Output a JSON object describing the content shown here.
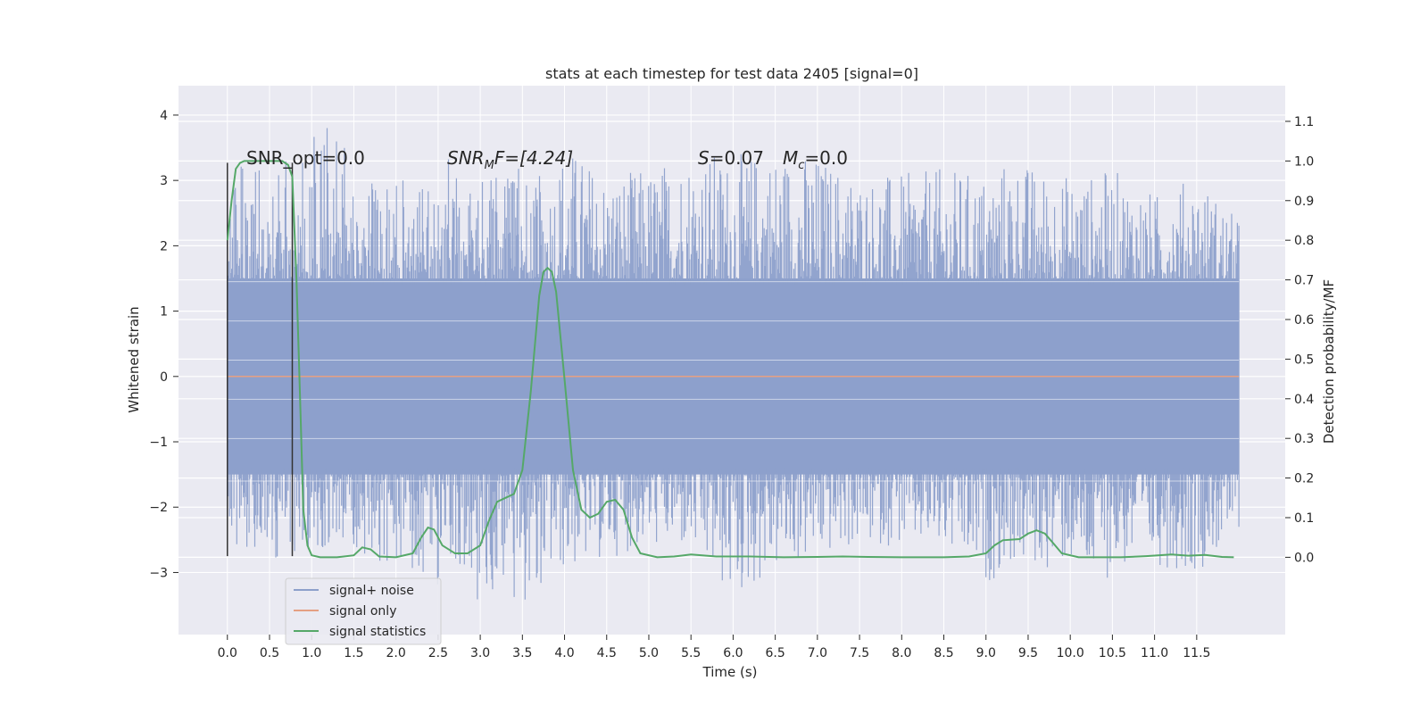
{
  "chart_data": {
    "type": "line",
    "title": "stats at each timestep for test data 2405 [signal=0]",
    "xlabel": "Time (s)",
    "ylabel": "Whitened strain",
    "y2label": "Detection probability/MF",
    "xlim": [
      -0.58,
      12.55
    ],
    "ylim": [
      -3.95,
      4.45
    ],
    "y2lim": [
      -0.195,
      1.19
    ],
    "xticks": [
      "0.0",
      "0.5",
      "1.0",
      "1.5",
      "2.0",
      "2.5",
      "3.0",
      "3.5",
      "4.0",
      "4.5",
      "5.0",
      "5.5",
      "6.0",
      "6.5",
      "7.0",
      "7.5",
      "8.0",
      "8.5",
      "9.0",
      "9.5",
      "10.0",
      "10.5",
      "11.0",
      "11.5"
    ],
    "yticks": [
      "4",
      "3",
      "2",
      "1",
      "0",
      "−1",
      "−2",
      "−3"
    ],
    "y2ticks": [
      "1.1",
      "1.0",
      "0.9",
      "0.8",
      "0.7",
      "0.6",
      "0.5",
      "0.4",
      "0.3",
      "0.2",
      "0.1",
      "0.0"
    ],
    "grid": true,
    "legend_position": "lower-left",
    "annotations": {
      "snr_opt": "SNR_opt=0.0",
      "snr_mf": "SNR",
      "snr_mf_sub": "M",
      "snr_mf_rest": "F=[4.24]",
      "s_label": "S",
      "s_value": "=0.07",
      "mc_label": "M",
      "mc_sub": "c",
      "mc_value": "=0.0"
    },
    "series": [
      {
        "name": "signal+ noise",
        "color": "#8da0cb",
        "kind": "noise",
        "x_range": [
          0.0,
          12.0
        ],
        "core_range": [
          -1.5,
          1.5
        ],
        "envelope": {
          "x": [
            0.0,
            0.1,
            0.5,
            1.0,
            1.05,
            1.5,
            2.0,
            2.5,
            2.6,
            3.0,
            3.2,
            3.5,
            3.8,
            4.0,
            4.5,
            5.0,
            5.5,
            6.0,
            6.5,
            7.0,
            7.5,
            8.0,
            8.5,
            9.0,
            9.3,
            9.6,
            10.0,
            10.3,
            10.5,
            11.0,
            11.5,
            12.0
          ],
          "upper": [
            3.1,
            3.3,
            3.2,
            3.5,
            4.1,
            3.3,
            3.0,
            3.2,
            3.4,
            3.0,
            3.1,
            3.3,
            3.0,
            3.6,
            3.1,
            3.2,
            3.5,
            3.4,
            3.5,
            3.4,
            3.1,
            3.1,
            3.2,
            3.1,
            3.4,
            3.2,
            3.1,
            3.1,
            3.2,
            2.8,
            3.1,
            2.4
          ],
          "lower": [
            -2.8,
            -2.6,
            -2.8,
            -2.7,
            -2.6,
            -2.7,
            -2.9,
            -3.2,
            -2.8,
            -3.5,
            -3.2,
            -3.6,
            -3.1,
            -3.0,
            -2.8,
            -2.6,
            -2.7,
            -3.5,
            -3.0,
            -2.8,
            -2.6,
            -2.6,
            -2.7,
            -3.2,
            -2.9,
            -3.0,
            -2.9,
            -3.3,
            -3.0,
            -2.9,
            -3.0,
            -2.4
          ]
        }
      },
      {
        "name": "signal only",
        "color": "#e5a083",
        "kind": "line",
        "x": [
          0.0,
          12.0
        ],
        "y": [
          0.0,
          0.0
        ]
      },
      {
        "name": "signal statistics",
        "color": "#55a868",
        "kind": "line2",
        "x": [
          0.0,
          0.05,
          0.1,
          0.15,
          0.2,
          0.3,
          0.5,
          0.65,
          0.72,
          0.77,
          0.82,
          0.87,
          0.9,
          0.95,
          1.0,
          1.1,
          1.3,
          1.5,
          1.6,
          1.7,
          1.8,
          2.0,
          2.2,
          2.3,
          2.38,
          2.45,
          2.55,
          2.7,
          2.85,
          3.0,
          3.1,
          3.2,
          3.3,
          3.4,
          3.5,
          3.6,
          3.7,
          3.75,
          3.8,
          3.85,
          3.9,
          4.0,
          4.1,
          4.2,
          4.3,
          4.4,
          4.5,
          4.6,
          4.7,
          4.8,
          4.9,
          5.1,
          5.3,
          5.5,
          5.8,
          6.2,
          6.6,
          7.0,
          7.3,
          7.6,
          8.0,
          8.5,
          8.8,
          9.0,
          9.1,
          9.2,
          9.4,
          9.5,
          9.6,
          9.7,
          9.8,
          9.9,
          10.1,
          10.3,
          10.6,
          10.9,
          11.2,
          11.4,
          11.6,
          11.8,
          11.94
        ],
        "y": [
          0.8,
          0.9,
          0.98,
          0.995,
          1.0,
          1.0,
          1.0,
          1.0,
          0.99,
          0.96,
          0.7,
          0.35,
          0.12,
          0.03,
          0.005,
          0.0,
          0.0,
          0.005,
          0.025,
          0.02,
          0.002,
          0.0,
          0.01,
          0.05,
          0.075,
          0.07,
          0.03,
          0.01,
          0.01,
          0.03,
          0.09,
          0.14,
          0.15,
          0.16,
          0.22,
          0.42,
          0.66,
          0.72,
          0.73,
          0.72,
          0.67,
          0.45,
          0.22,
          0.12,
          0.1,
          0.11,
          0.14,
          0.145,
          0.12,
          0.05,
          0.01,
          0.0,
          0.002,
          0.007,
          0.002,
          0.002,
          0.0,
          0.001,
          0.002,
          0.001,
          0.0,
          0.0,
          0.002,
          0.01,
          0.03,
          0.043,
          0.046,
          0.06,
          0.068,
          0.06,
          0.035,
          0.01,
          0.0,
          0.0,
          0.0,
          0.003,
          0.007,
          0.004,
          0.006,
          0.001,
          0.0
        ]
      }
    ],
    "markers": {
      "vertical_lines_x": [
        0.0,
        0.77
      ],
      "vertical_lines_ylim": [
        -2.75,
        3.27
      ]
    }
  }
}
